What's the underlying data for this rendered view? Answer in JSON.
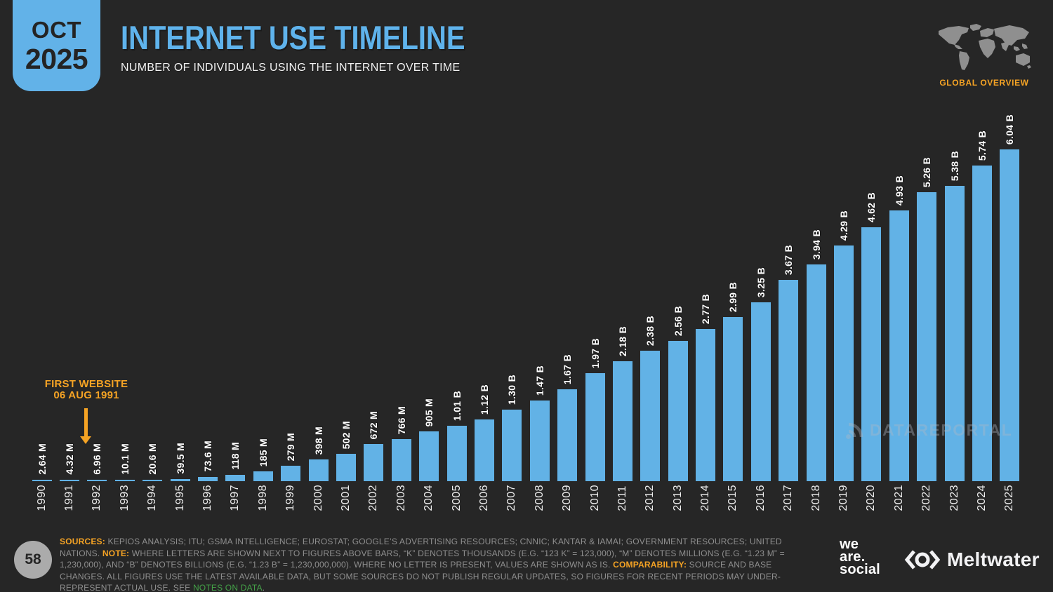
{
  "colors": {
    "background": "#262626",
    "bar_blue": "#62b2e6",
    "title_blue": "#5fb3ec",
    "accent_orange": "#f5a324",
    "accent_green": "#44a248",
    "footnote_gray": "#8f8f8f"
  },
  "header": {
    "date_badge": {
      "month": "OCT",
      "year": "2025"
    },
    "title": "INTERNET USE TIMELINE",
    "subtitle": "NUMBER OF INDIVIDUALS USING THE INTERNET OVER TIME",
    "region_label": "GLOBAL OVERVIEW"
  },
  "chart_data": {
    "type": "bar",
    "title": "INTERNET USE TIMELINE",
    "xlabel": "",
    "ylabel": "",
    "grid": false,
    "legend": null,
    "ylim": [
      0,
      6.04
    ],
    "unit": "billions of individuals",
    "bar_color": "#62b2e6",
    "categories": [
      "1990",
      "1991",
      "1992",
      "1993",
      "1994",
      "1995",
      "1996",
      "1997",
      "1998",
      "1999",
      "2000",
      "2001",
      "2002",
      "2003",
      "2004",
      "2005",
      "2006",
      "2007",
      "2008",
      "2009",
      "2010",
      "2011",
      "2012",
      "2013",
      "2014",
      "2015",
      "2016",
      "2017",
      "2018",
      "2019",
      "2020",
      "2021",
      "2022",
      "2023",
      "2024",
      "2025"
    ],
    "values_billions": [
      0.00264,
      0.00432,
      0.00696,
      0.0101,
      0.0206,
      0.0395,
      0.0736,
      0.118,
      0.185,
      0.279,
      0.398,
      0.502,
      0.672,
      0.766,
      0.905,
      1.01,
      1.12,
      1.3,
      1.47,
      1.67,
      1.97,
      2.18,
      2.38,
      2.56,
      2.77,
      2.99,
      3.25,
      3.67,
      3.94,
      4.29,
      4.62,
      4.93,
      5.26,
      5.38,
      5.74,
      6.04
    ],
    "bar_labels": [
      "2.64 M",
      "4.32 M",
      "6.96 M",
      "10.1 M",
      "20.6 M",
      "39.5 M",
      "73.6 M",
      "118 M",
      "185 M",
      "279 M",
      "398 M",
      "502 M",
      "672 M",
      "766 M",
      "905 M",
      "1.01 B",
      "1.12 B",
      "1.30 B",
      "1.47 B",
      "1.67 B",
      "1.97 B",
      "2.18 B",
      "2.38 B",
      "2.56 B",
      "2.77 B",
      "2.99 B",
      "3.25 B",
      "3.67 B",
      "3.94 B",
      "4.29 B",
      "4.62 B",
      "4.93 B",
      "5.26 B",
      "5.38 B",
      "5.74 B",
      "6.04 B"
    ],
    "annotation": {
      "line1": "FIRST WEBSITE",
      "line2": "06 AUG 1991",
      "arrow": "points down toward 1991/1992 bars"
    }
  },
  "watermark": {
    "text": "DATAREPORTAL"
  },
  "footer": {
    "page_number": "58",
    "sources_label": "SOURCES:",
    "sources_text": " KEPIOS ANALYSIS; ITU; GSMA INTELLIGENCE; EUROSTAT; GOOGLE’S ADVERTISING RESOURCES; CNNIC; KANTAR & IAMAI; GOVERNMENT RESOURCES; UNITED NATIONS. ",
    "note_label": "NOTE:",
    "note_text": " WHERE LETTERS ARE SHOWN NEXT TO FIGURES ABOVE BARS, “K” DENOTES THOUSANDS (E.G. “123 K” = 123,000), “M” DENOTES MILLIONS (E.G. “1.23 M” = 1,230,000), AND “B” DENOTES BILLIONS (E.G. “1.23 B” = 1,230,000,000). WHERE NO LETTER IS PRESENT, VALUES ARE SHOWN AS IS. ",
    "comparability_label": "COMPARABILITY:",
    "comparability_text": " SOURCE AND BASE CHANGES. ALL FIGURES USE THE LATEST AVAILABLE DATA, BUT SOME SOURCES DO NOT PUBLISH REGULAR UPDATES, SO FIGURES FOR RECENT PERIODS MAY UNDER-REPRESENT ACTUAL USE. SEE ",
    "notes_link": "NOTES ON DATA",
    "notes_suffix": ".",
    "brand_we_are_social": {
      "line1": "we",
      "line2": "are.",
      "line3": "social"
    },
    "brand_meltwater": "Meltwater"
  }
}
